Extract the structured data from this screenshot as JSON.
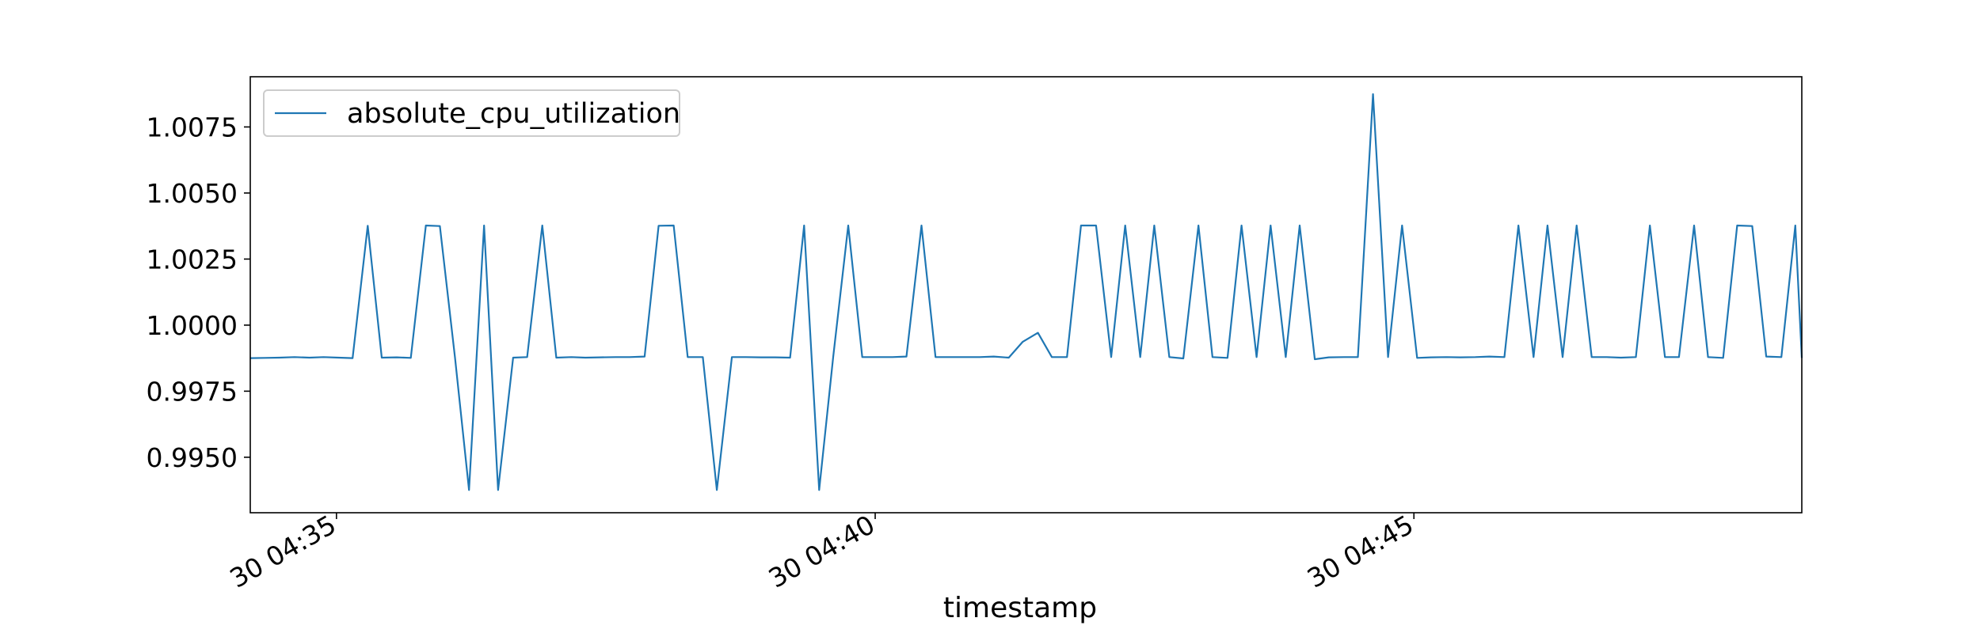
{
  "chart_data": {
    "type": "line",
    "xlabel": "timestamp",
    "ylabel": "",
    "title": "",
    "x_tick_labels": [
      "30 04:35",
      "30 04:40",
      "30 04:45"
    ],
    "x_tick_minutes": [
      4.5,
      9.5,
      14.5
    ],
    "xlim_minutes": [
      3.7,
      18.1
    ],
    "y_ticks": [
      0.995,
      0.9975,
      1.0,
      1.0025,
      1.005,
      1.0075
    ],
    "y_tick_labels": [
      "0.9950",
      "0.9975",
      "1.0000",
      "1.0025",
      "1.0050",
      "1.0075"
    ],
    "ylim": [
      0.9929,
      1.0094
    ],
    "legend_position": "upper-left",
    "grid": false,
    "series": [
      {
        "name": "absolute_cpu_utilization",
        "color": "#1f77b4",
        "x": [
          3.7,
          3.84,
          3.97,
          4.11,
          4.25,
          4.38,
          4.52,
          4.65,
          4.79,
          4.92,
          5.06,
          5.19,
          5.33,
          5.46,
          5.6,
          5.73,
          5.87,
          6.0,
          6.14,
          6.27,
          6.41,
          6.54,
          6.68,
          6.81,
          6.95,
          7.09,
          7.22,
          7.36,
          7.49,
          7.63,
          7.76,
          7.9,
          8.03,
          8.17,
          8.3,
          8.44,
          8.57,
          8.71,
          8.84,
          8.98,
          9.11,
          9.25,
          9.38,
          9.52,
          9.66,
          9.79,
          9.93,
          10.06,
          10.2,
          10.33,
          10.47,
          10.6,
          10.74,
          10.87,
          11.01,
          11.14,
          11.28,
          11.41,
          11.55,
          11.69,
          11.82,
          11.96,
          12.09,
          12.23,
          12.36,
          12.5,
          12.63,
          12.77,
          12.9,
          13.04,
          13.17,
          13.31,
          13.44,
          13.58,
          13.71,
          13.85,
          13.98,
          14.12,
          14.26,
          14.39,
          14.53,
          14.66,
          14.8,
          14.93,
          15.07,
          15.2,
          15.34,
          15.47,
          15.61,
          15.74,
          15.88,
          16.01,
          16.15,
          16.29,
          16.42,
          16.56,
          16.69,
          16.83,
          16.96,
          17.1,
          17.23,
          17.37,
          17.5,
          17.64,
          17.77,
          17.91,
          18.04,
          18.1
        ],
        "values": [
          0.99875,
          0.99876,
          0.99877,
          0.99879,
          0.99877,
          0.99879,
          0.99877,
          0.99875,
          1.00376,
          0.99877,
          0.99878,
          0.99876,
          1.00377,
          1.00375,
          0.99877,
          0.99376,
          1.00377,
          0.99376,
          0.99877,
          0.99879,
          1.00377,
          0.99877,
          0.99879,
          0.99877,
          0.99878,
          0.99879,
          0.99879,
          0.99881,
          1.00376,
          1.00377,
          0.99879,
          0.99879,
          0.99376,
          0.99879,
          0.99879,
          0.99878,
          0.99878,
          0.99877,
          1.00377,
          0.99376,
          0.99879,
          1.00377,
          0.99879,
          0.99879,
          0.99879,
          0.99881,
          1.00377,
          0.99879,
          0.99879,
          0.99879,
          0.99879,
          0.99881,
          0.99877,
          0.99937,
          0.99971,
          0.99879,
          0.99879,
          1.00377,
          1.00377,
          0.99879,
          1.00377,
          0.99879,
          1.00377,
          0.99879,
          0.99874,
          1.00377,
          0.99879,
          0.99876,
          1.00377,
          0.99879,
          1.00377,
          0.99879,
          1.00377,
          0.99871,
          0.99878,
          0.99879,
          0.99879,
          1.00874,
          0.99879,
          1.00377,
          0.99876,
          0.99878,
          0.99879,
          0.99878,
          0.99879,
          0.99881,
          0.99879,
          1.00377,
          0.99879,
          1.00377,
          0.99879,
          1.00377,
          0.99879,
          0.99879,
          0.99877,
          0.99879,
          1.00377,
          0.99879,
          0.99879,
          1.00377,
          0.99879,
          0.99876,
          1.00377,
          1.00375,
          0.99881,
          0.99879,
          1.00377,
          0.99876
        ]
      }
    ]
  }
}
